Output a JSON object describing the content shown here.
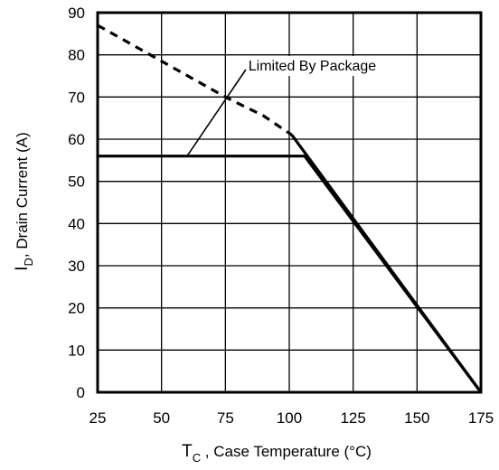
{
  "chart_data": {
    "type": "line",
    "x_label": {
      "main": "T",
      "sub": "C",
      "rest": " , Case Temperature (°C)"
    },
    "y_label": {
      "main": "I",
      "sub": "D",
      "rest": ",  Drain Current (A)"
    },
    "x_ticks": [
      "25",
      "50",
      "75",
      "100",
      "125",
      "150",
      "175"
    ],
    "y_ticks": [
      "0",
      "10",
      "20",
      "30",
      "40",
      "50",
      "60",
      "70",
      "80",
      "90"
    ],
    "xlim": [
      25,
      175
    ],
    "ylim": [
      0,
      90
    ],
    "grid": true,
    "series": [
      {
        "style": "dashed",
        "points": [
          [
            25,
            87
          ],
          [
            50,
            78.5
          ],
          [
            75,
            70
          ],
          [
            90,
            65.5
          ],
          [
            101,
            61
          ]
        ]
      },
      {
        "style": "solid",
        "points": [
          [
            25,
            56
          ],
          [
            106,
            56
          ],
          [
            175,
            0
          ]
        ]
      },
      {
        "style": "solid",
        "points": [
          [
            101,
            61
          ],
          [
            175,
            0
          ]
        ]
      }
    ],
    "annotation": {
      "text": "Limited By Package",
      "pointer_from": [
        60,
        56
      ],
      "pointer_to": [
        83,
        76.5
      ],
      "text_at": [
        84,
        76.5
      ]
    }
  }
}
